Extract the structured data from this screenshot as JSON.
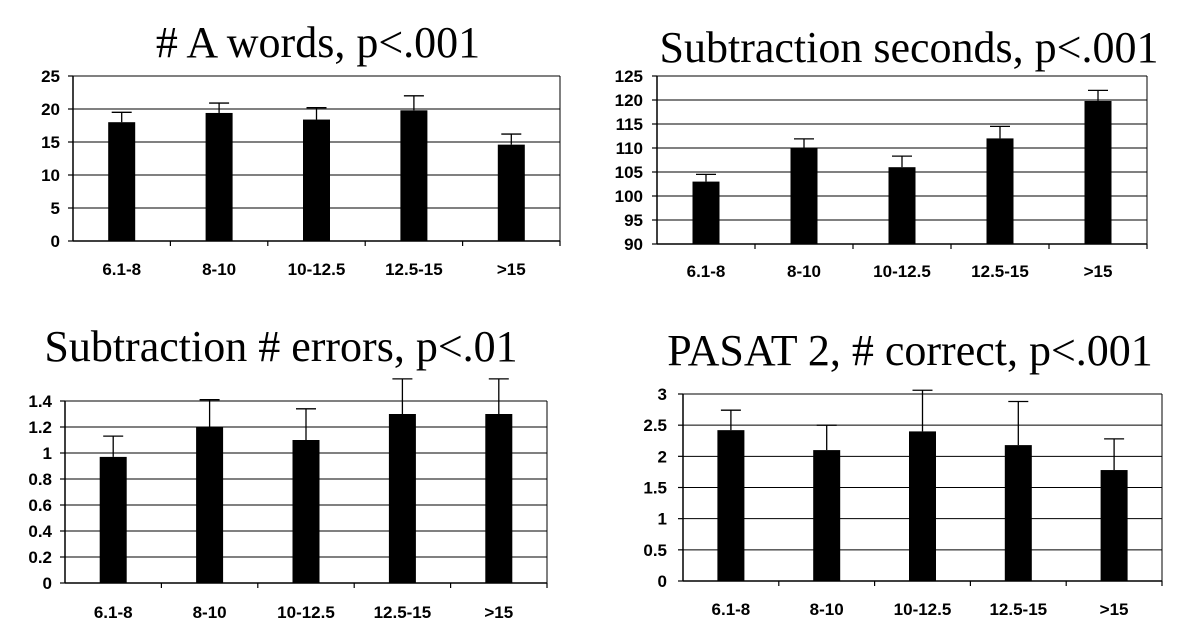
{
  "chart_data": [
    {
      "type": "bar",
      "title": "# A words, p<.001",
      "xlabel": "",
      "ylabel": "",
      "categories": [
        "6.1-8",
        "8-10",
        "10-12.5",
        "12.5-15",
        ">15"
      ],
      "values": [
        18,
        19.4,
        18.4,
        19.8,
        14.6
      ],
      "error_upper": [
        1.5,
        1.5,
        1.8,
        2.2,
        1.6
      ],
      "ylim": [
        0,
        25
      ],
      "yticks": [
        0,
        5,
        10,
        15,
        20,
        25
      ],
      "ytick_labels": [
        "0",
        "5",
        "10",
        "15",
        "20",
        "25"
      ],
      "grid": true,
      "bar_color": "#000000"
    },
    {
      "type": "bar",
      "title": "Subtraction seconds, p<.001",
      "xlabel": "",
      "ylabel": "",
      "categories": [
        "6.1-8",
        "8-10",
        "10-12.5",
        "12.5-15",
        ">15"
      ],
      "values": [
        103,
        110,
        106,
        112,
        119.8
      ],
      "error_upper": [
        1.5,
        1.9,
        2.3,
        2.5,
        2.2
      ],
      "ylim": [
        90,
        125
      ],
      "yticks": [
        90,
        95,
        100,
        105,
        110,
        115,
        120,
        125
      ],
      "ytick_labels": [
        "90",
        "95",
        "100",
        "105",
        "110",
        "115",
        "120",
        "125"
      ],
      "grid": true,
      "bar_color": "#000000"
    },
    {
      "type": "bar",
      "title": "Subtraction # errors, p<.01",
      "xlabel": "",
      "ylabel": "",
      "categories": [
        "6.1-8",
        "8-10",
        "10-12.5",
        "12.5-15",
        ">15"
      ],
      "values": [
        0.97,
        1.2,
        1.1,
        1.3,
        1.3
      ],
      "error_upper": [
        0.16,
        0.21,
        0.24,
        0.27,
        0.27
      ],
      "ylim": [
        0,
        1.4
      ],
      "yticks": [
        0,
        0.2,
        0.4,
        0.6,
        0.8,
        1,
        1.2,
        1.4
      ],
      "ytick_labels": [
        "0",
        "0.2",
        "0.4",
        "0.6",
        "0.8",
        "1",
        "1.2",
        "1.4"
      ],
      "grid": true,
      "bar_color": "#000000"
    },
    {
      "type": "bar",
      "title": "PASAT 2, # correct, p<.001",
      "xlabel": "",
      "ylabel": "",
      "categories": [
        "6.1-8",
        "8-10",
        "10-12.5",
        "12.5-15",
        ">15"
      ],
      "values": [
        2.42,
        2.1,
        2.4,
        2.18,
        1.78
      ],
      "error_upper": [
        0.32,
        0.4,
        0.66,
        0.7,
        0.5
      ],
      "ylim": [
        0,
        3
      ],
      "yticks": [
        0,
        0.5,
        1,
        1.5,
        2,
        2.5,
        3
      ],
      "ytick_labels": [
        "0",
        "0.5",
        "1",
        "1.5",
        "2",
        "2.5",
        "3"
      ],
      "grid": true,
      "bar_color": "#000000"
    }
  ]
}
